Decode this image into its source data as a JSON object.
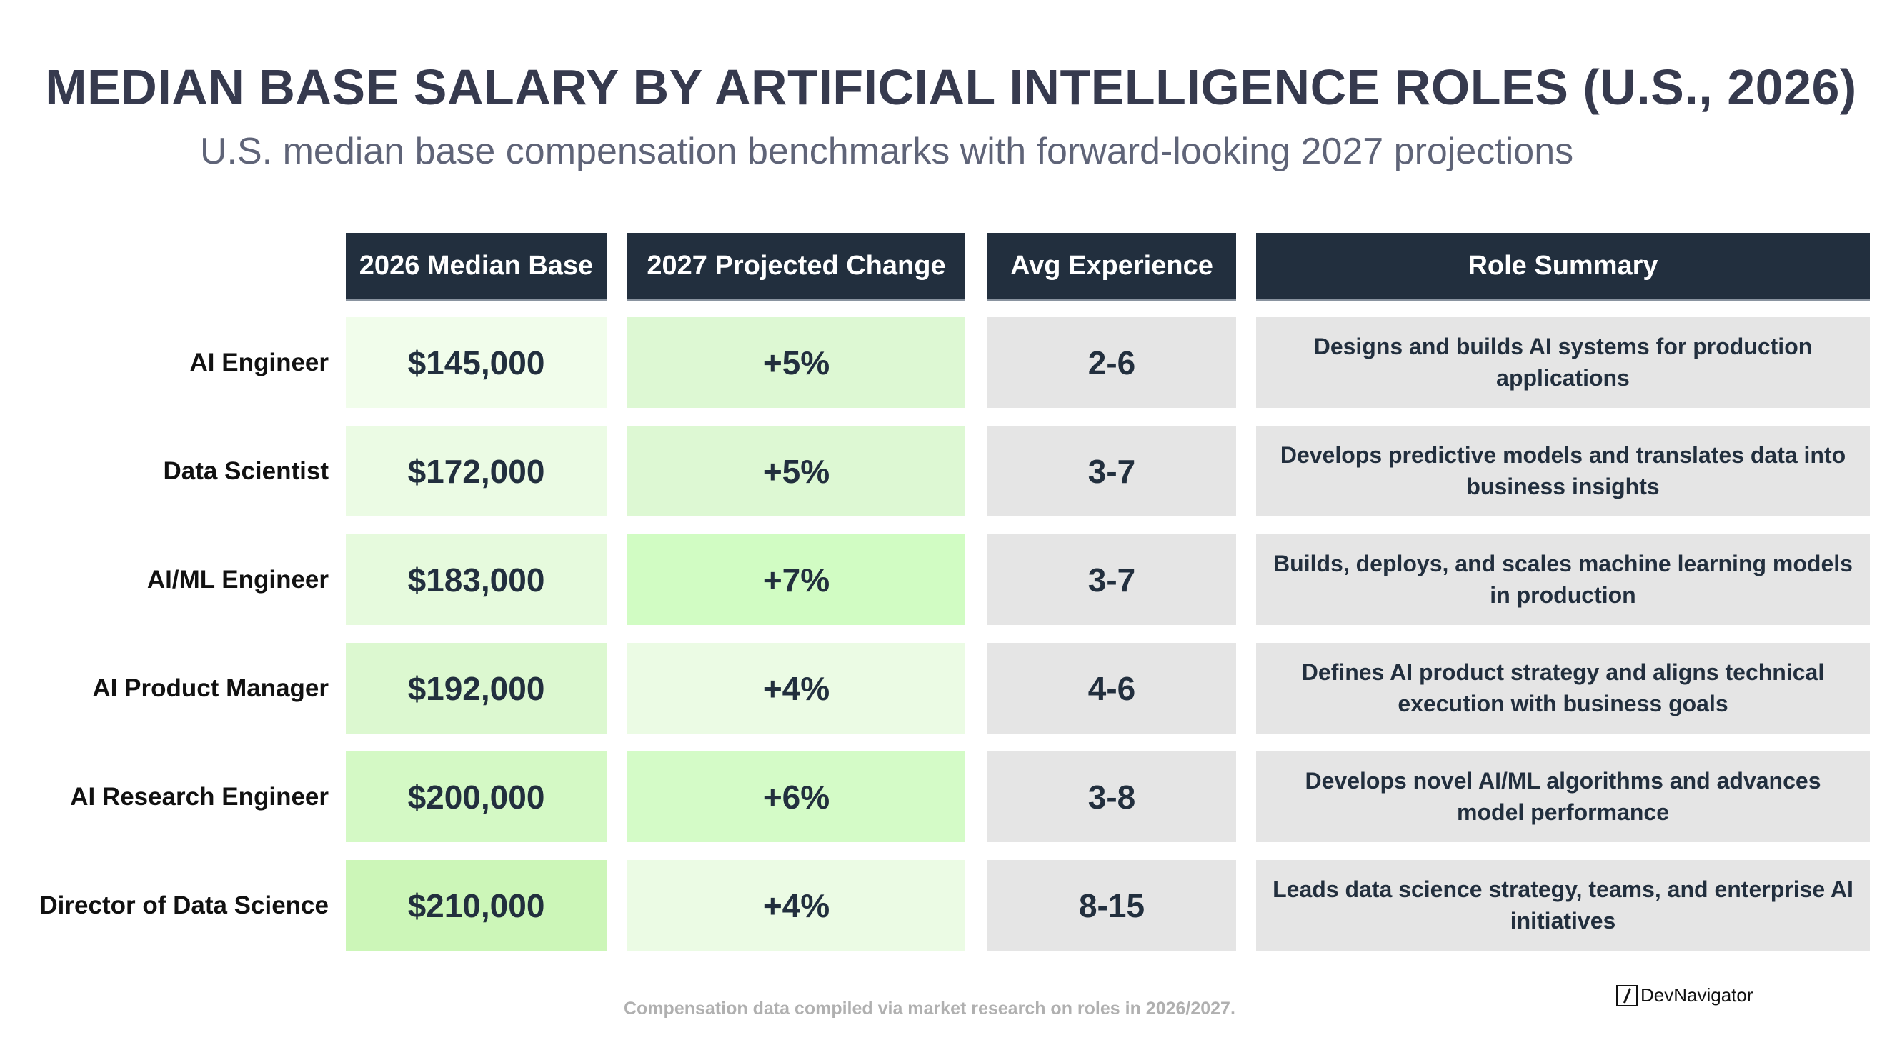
{
  "title": "MEDIAN BASE SALARY BY ARTIFICIAL INTELLIGENCE ROLES (U.S., 2026)",
  "subtitle": "U.S. median base compensation benchmarks with forward-looking 2027 projections",
  "headers": [
    "2026 Median Base",
    "2027 Projected Change",
    "Avg Experience",
    "Role Summary"
  ],
  "colors": {
    "header": "#222f3e",
    "neutral_cell": "#e5e5e5"
  },
  "rows": [
    {
      "role": "AI Engineer",
      "salary": "$145,000",
      "change": "+5%",
      "experience": "2-6",
      "summary": "Designs and builds AI systems for production applications",
      "salary_color": "#f1fdeb",
      "change_color": "#ddf8d3"
    },
    {
      "role": "Data Scientist",
      "salary": "$172,000",
      "change": "+5%",
      "experience": "3-7",
      "summary": "Develops predictive models and translates data into business insights",
      "salary_color": "#ebfbe4",
      "change_color": "#ddf8d3"
    },
    {
      "role": "AI/ML Engineer",
      "salary": "$183,000",
      "change": "+7%",
      "experience": "3-7",
      "summary": "Builds, deploys, and scales machine learning models in production",
      "salary_color": "#e6fadd",
      "change_color": "#d1fcc3"
    },
    {
      "role": "AI Product Manager",
      "salary": "$192,000",
      "change": "+4%",
      "experience": "4-6",
      "summary": "Defines AI product strategy and aligns technical execution with business goals",
      "salary_color": "#dcf8d0",
      "change_color": "#ebfbe4"
    },
    {
      "role": "AI Research Engineer",
      "salary": "$200,000",
      "change": "+6%",
      "experience": "3-8",
      "summary": "Develops novel AI/ML algorithms and advances model performance",
      "salary_color": "#d4f9c5",
      "change_color": "#d4fbc7"
    },
    {
      "role": "Director of Data Science",
      "salary": "$210,000",
      "change": "+4%",
      "experience": "8-15",
      "summary": "Leads data science strategy, teams, and enterprise AI initiatives",
      "salary_color": "#ccf6b8",
      "change_color": "#ebfbe4"
    }
  ],
  "footer": "Compensation data compiled via market research on roles in 2026/2027.",
  "logo": {
    "text": "DevNavigator",
    "icon": "slash-box-icon"
  }
}
